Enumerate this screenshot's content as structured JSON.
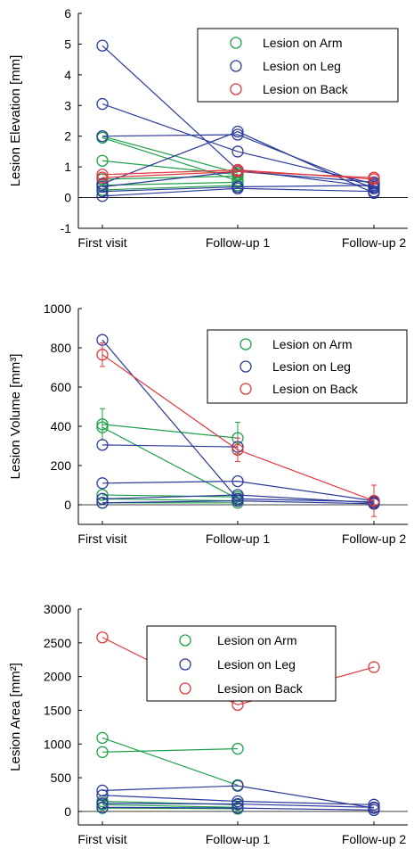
{
  "chart_data": [
    {
      "type": "line",
      "ylabel": "Lesion Elevation [mm]",
      "categories": [
        "First visit",
        "Follow-up 1",
        "Follow-up 2"
      ],
      "ylim": [
        -1,
        6
      ],
      "yticks": [
        -1,
        0,
        1,
        2,
        3,
        4,
        5,
        6
      ],
      "legend": {
        "position": "top-right",
        "entries": [
          "Lesion on Arm",
          "Lesion on Leg",
          "Lesion on Back"
        ]
      },
      "series": [
        {
          "group": "Arm",
          "color": "#1ea04a",
          "values": [
            2.0,
            0.8,
            null
          ]
        },
        {
          "group": "Arm",
          "color": "#1ea04a",
          "values": [
            1.95,
            0.55,
            null
          ]
        },
        {
          "group": "Arm",
          "color": "#1ea04a",
          "values": [
            1.2,
            0.75,
            null
          ]
        },
        {
          "group": "Arm",
          "color": "#1ea04a",
          "values": [
            0.6,
            0.7,
            null
          ]
        },
        {
          "group": "Arm",
          "color": "#1ea04a",
          "values": [
            0.4,
            0.5,
            null
          ]
        },
        {
          "group": "Arm",
          "color": "#1ea04a",
          "values": [
            0.25,
            0.4,
            null
          ]
        },
        {
          "group": "Leg",
          "color": "#2b3a9a",
          "values": [
            4.95,
            0.9,
            0.35
          ]
        },
        {
          "group": "Leg",
          "color": "#2b3a9a",
          "values": [
            3.05,
            1.5,
            0.45
          ]
        },
        {
          "group": "Leg",
          "color": "#2b3a9a",
          "values": [
            2.0,
            2.05,
            0.3
          ]
        },
        {
          "group": "Leg",
          "color": "#2b3a9a",
          "values": [
            0.45,
            2.15,
            0.15
          ]
        },
        {
          "group": "Leg",
          "color": "#2b3a9a",
          "values": [
            0.35,
            0.85,
            0.5
          ]
        },
        {
          "group": "Leg",
          "color": "#2b3a9a",
          "values": [
            0.2,
            0.35,
            0.4
          ]
        },
        {
          "group": "Leg",
          "color": "#2b3a9a",
          "values": [
            0.05,
            0.3,
            0.2
          ]
        },
        {
          "group": "Back",
          "color": "#e0383f",
          "values": [
            0.75,
            0.9,
            0.6
          ]
        },
        {
          "group": "Back",
          "color": "#e0383f",
          "values": [
            0.65,
            0.85,
            0.65
          ]
        }
      ]
    },
    {
      "type": "line",
      "ylabel": "Lesion Volume [mm³]",
      "categories": [
        "First visit",
        "Follow-up 1",
        "Follow-up 2"
      ],
      "ylim": [
        -100,
        1000
      ],
      "yticks": [
        0,
        200,
        400,
        600,
        800,
        1000
      ],
      "legend": {
        "position": "top-right",
        "entries": [
          "Lesion on Arm",
          "Lesion on Leg",
          "Lesion on Back"
        ]
      },
      "series": [
        {
          "group": "Arm",
          "color": "#1ea04a",
          "values": [
            410,
            340,
            null
          ],
          "err": [
            80,
            80,
            null
          ]
        },
        {
          "group": "Arm",
          "color": "#1ea04a",
          "values": [
            395,
            30,
            null
          ]
        },
        {
          "group": "Arm",
          "color": "#1ea04a",
          "values": [
            50,
            40,
            null
          ]
        },
        {
          "group": "Arm",
          "color": "#1ea04a",
          "values": [
            30,
            20,
            null
          ]
        },
        {
          "group": "Arm",
          "color": "#1ea04a",
          "values": [
            10,
            10,
            null
          ]
        },
        {
          "group": "Leg",
          "color": "#2b3a9a",
          "values": [
            840,
            30,
            15
          ]
        },
        {
          "group": "Leg",
          "color": "#2b3a9a",
          "values": [
            305,
            295,
            null
          ]
        },
        {
          "group": "Leg",
          "color": "#2b3a9a",
          "values": [
            110,
            120,
            20
          ]
        },
        {
          "group": "Leg",
          "color": "#2b3a9a",
          "values": [
            30,
            50,
            10
          ]
        },
        {
          "group": "Leg",
          "color": "#2b3a9a",
          "values": [
            10,
            20,
            5
          ]
        },
        {
          "group": "Back",
          "color": "#e0383f",
          "values": [
            765,
            280,
            20
          ],
          "err": [
            60,
            60,
            80
          ]
        }
      ]
    },
    {
      "type": "line",
      "ylabel": "Lesion Area [mm²]",
      "categories": [
        "First visit",
        "Follow-up 1",
        "Follow-up 2"
      ],
      "ylim": [
        -200,
        3000
      ],
      "yticks": [
        0,
        500,
        1000,
        1500,
        2000,
        2500,
        3000
      ],
      "legend": {
        "position": "top-center",
        "entries": [
          "Lesion on Arm",
          "Lesion on Leg",
          "Lesion on Back"
        ]
      },
      "series": [
        {
          "group": "Arm",
          "color": "#1ea04a",
          "values": [
            1090,
            390,
            null
          ]
        },
        {
          "group": "Arm",
          "color": "#1ea04a",
          "values": [
            880,
            930,
            null
          ]
        },
        {
          "group": "Arm",
          "color": "#1ea04a",
          "values": [
            150,
            100,
            null
          ]
        },
        {
          "group": "Arm",
          "color": "#1ea04a",
          "values": [
            100,
            60,
            null
          ]
        },
        {
          "group": "Arm",
          "color": "#1ea04a",
          "values": [
            50,
            40,
            null
          ]
        },
        {
          "group": "Leg",
          "color": "#2b3a9a",
          "values": [
            310,
            380,
            50
          ]
        },
        {
          "group": "Leg",
          "color": "#2b3a9a",
          "values": [
            240,
            150,
            100
          ]
        },
        {
          "group": "Leg",
          "color": "#2b3a9a",
          "values": [
            120,
            110,
            60
          ]
        },
        {
          "group": "Leg",
          "color": "#2b3a9a",
          "values": [
            60,
            50,
            20
          ]
        },
        {
          "group": "Back",
          "color": "#e0383f",
          "values": [
            2580,
            1580,
            2140
          ]
        }
      ]
    }
  ],
  "legend_colors": {
    "Arm": "#1ea04a",
    "Leg": "#2b3a9a",
    "Back": "#e0383f"
  }
}
